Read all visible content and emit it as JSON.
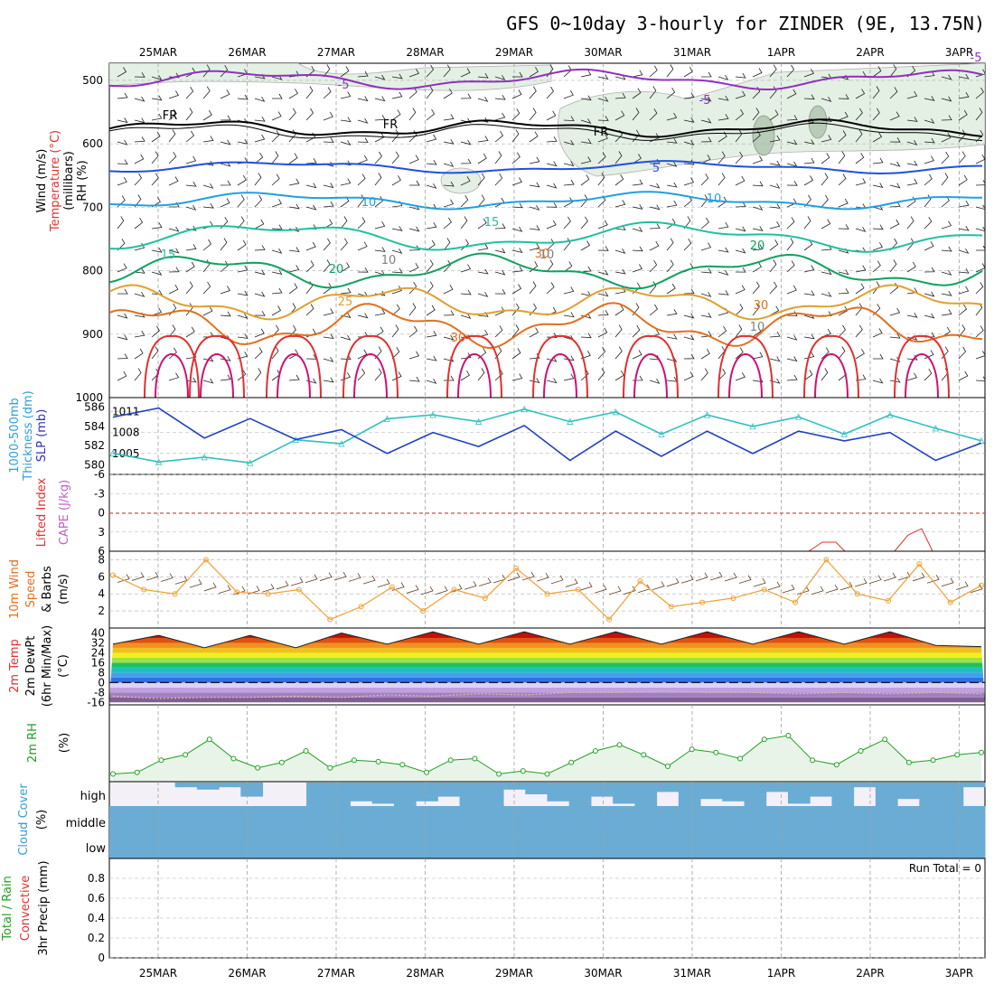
{
  "title": "GFS 0~10day 3-hourly for ZINDER (9E, 13.75N)",
  "dates": [
    "25MAR",
    "26MAR",
    "27MAR",
    "28MAR",
    "29MAR",
    "30MAR",
    "31MAR",
    "1APR",
    "2APR",
    "3APR"
  ],
  "panels": {
    "upper": {
      "ylabel_lines": [
        {
          "text": "Wind (m/s)",
          "color": "#000000"
        },
        {
          "text": "Temperature (°C)",
          "color": "#e03030"
        },
        {
          "text": "(millibars)",
          "color": "#000000"
        },
        {
          "text": "RH (%)",
          "color": "#000000"
        }
      ],
      "yticks": [
        "500",
        "600",
        "700",
        "800",
        "900",
        "1000"
      ],
      "contour_labels": [
        "-5",
        "-5",
        "-5",
        "FR",
        "FR",
        "FR",
        "5",
        "10",
        "10",
        "15",
        "15",
        "20",
        "20",
        "25",
        "30",
        "30",
        "30",
        "10",
        "10",
        "10"
      ]
    },
    "thickness": {
      "ylabel_lines": [
        {
          "text": "1000-500mb",
          "color": "#30a0d0"
        },
        {
          "text": "Thickness (dm)",
          "color": "#30a0d0"
        },
        {
          "text": "SLP (mb)",
          "color": "#3030c0"
        }
      ],
      "left_ticks": [
        "586",
        "584",
        "582",
        "580"
      ],
      "right_ticks": [
        "1011",
        "1008",
        "1005"
      ]
    },
    "lifted": {
      "ylabel_lines": [
        {
          "text": "Lifted Index",
          "color": "#e03030"
        },
        {
          "text": "CAPE (J/kg)",
          "color": "#c060c0"
        }
      ],
      "yticks": [
        "-6",
        "-3",
        "0",
        "3",
        "6"
      ]
    },
    "wind10": {
      "ylabel_lines": [
        {
          "text": "10m Wind",
          "color": "#e07020"
        },
        {
          "text": "Speed",
          "color": "#e07020"
        },
        {
          "text": "& Barbs",
          "color": "#000000"
        },
        {
          "text": "(m/s)",
          "color": "#000000"
        }
      ],
      "yticks": [
        "8",
        "6",
        "4",
        "2"
      ]
    },
    "temp2m": {
      "ylabel_lines": [
        {
          "text": "2m Temp",
          "color": "#e03030"
        },
        {
          "text": "2m DewPt",
          "color": "#000000"
        },
        {
          "text": "(6hr Min/Max)",
          "color": "#000000"
        },
        {
          "text": "(°C)",
          "color": "#000000"
        }
      ],
      "yticks": [
        "40",
        "32",
        "24",
        "16",
        "8",
        "0",
        "-8",
        "-16"
      ]
    },
    "rh2m": {
      "ylabel_lines": [
        {
          "text": "2m RH",
          "color": "#20a020"
        },
        {
          "text": "(%)",
          "color": "#000000"
        }
      ]
    },
    "cloud": {
      "ylabel_lines": [
        {
          "text": "Cloud Cover",
          "color": "#30a0d0"
        },
        {
          "text": "(%)",
          "color": "#000000"
        }
      ],
      "levels": [
        "high",
        "middle",
        "low"
      ]
    },
    "precip": {
      "ylabel_lines": [
        {
          "text": "Total / Rain",
          "color": "#20a020"
        },
        {
          "text": "Convective",
          "color": "#e03030"
        },
        {
          "text": "3hr Precip (mm)",
          "color": "#000000"
        }
      ],
      "yticks": [
        "0.8",
        "0.6",
        "0.4",
        "0.2",
        "0"
      ],
      "run_total": "Run Total = 0"
    }
  },
  "chart_data": [
    {
      "type": "line",
      "panel": "thickness",
      "x": [
        "25MAR 00",
        "25MAR 12",
        "26MAR 00",
        "26MAR 12",
        "27MAR 00",
        "27MAR 12",
        "28MAR 00",
        "28MAR 12",
        "29MAR 00",
        "29MAR 12",
        "30MAR 00",
        "30MAR 12",
        "31MAR 00",
        "31MAR 12",
        "1APR 00",
        "1APR 12",
        "2APR 00",
        "2APR 12",
        "3APR 00",
        "3APR 06"
      ],
      "series": [
        {
          "name": "1000-500mb Thickness (dm)",
          "color": "#30c0c0",
          "axis": "left",
          "values": [
            581.2,
            580.3,
            580.8,
            580.2,
            582.6,
            582.2,
            584.8,
            585.2,
            584.5,
            585.8,
            584.5,
            585.5,
            583.2,
            585.2,
            584.0,
            585.0,
            583.2,
            585.2,
            583.8,
            582.5
          ]
        },
        {
          "name": "SLP (mb)",
          "color": "#2040c0",
          "axis": "right",
          "values": [
            1010.2,
            1011.5,
            1007.2,
            1010.0,
            1007.0,
            1008.4,
            1005.0,
            1008.0,
            1006.0,
            1009.0,
            1004.0,
            1008.2,
            1004.6,
            1008.2,
            1005.0,
            1008.2,
            1006.8,
            1008.0,
            1004.0,
            1006.5
          ]
        }
      ],
      "ylim_left": [
        579,
        587
      ],
      "ylim_right": [
        1002,
        1013
      ]
    },
    {
      "type": "line",
      "panel": "wind10",
      "series": [
        {
          "name": "10m Wind Speed",
          "color": "#f0a030",
          "values": [
            6.2,
            4.5,
            4.0,
            8.0,
            4.2,
            4.0,
            4.5,
            1.0,
            2.5,
            4.8,
            2.0,
            4.5,
            3.5,
            7.0,
            4.0,
            4.5,
            1.0,
            5.5,
            2.5,
            3.0,
            3.5,
            4.5,
            3.0,
            8.0,
            4.0,
            3.2,
            7.5,
            3.0,
            5.0
          ]
        }
      ],
      "ylim": [
        0,
        9
      ]
    },
    {
      "type": "area",
      "panel": "temp2m",
      "series": [
        {
          "name": "2m Temp",
          "color": "#e03030",
          "values": [
            31,
            38,
            28,
            38,
            28,
            40,
            31,
            41,
            31,
            41,
            31,
            41,
            31,
            41,
            31,
            41,
            31,
            41,
            30,
            29
          ]
        },
        {
          "name": "2m DewPt",
          "color": "#808080",
          "values": [
            -11,
            -13,
            -12,
            -12,
            -11,
            -12,
            -10,
            -11,
            -9,
            -10,
            -8,
            -8,
            -7,
            -8,
            -8,
            -9,
            -8,
            -9,
            -8,
            -9
          ]
        }
      ],
      "ylim": [
        -18,
        44
      ]
    },
    {
      "type": "area",
      "panel": "rh2m",
      "series": [
        {
          "name": "2m RH",
          "color": "#20a020",
          "values": [
            10,
            12,
            28,
            35,
            55,
            30,
            18,
            25,
            40,
            18,
            28,
            26,
            22,
            12,
            28,
            30,
            10,
            14,
            10,
            25,
            40,
            48,
            35,
            20,
            42,
            38,
            30,
            55,
            60,
            28,
            22,
            40,
            55,
            25,
            28,
            35,
            38
          ]
        }
      ],
      "ylim": [
        0,
        100
      ]
    },
    {
      "type": "bar",
      "panel": "cloud",
      "series": [
        {
          "name": "high",
          "color": "#6aacd4",
          "values": [
            0,
            0,
            0,
            20,
            30,
            20,
            60,
            0,
            0,
            100,
            100,
            80,
            90,
            100,
            80,
            60,
            100,
            100,
            30,
            50,
            80,
            100,
            60,
            90,
            100,
            40,
            100,
            70,
            80,
            100,
            40,
            90,
            60,
            100,
            20,
            100,
            70,
            100,
            100,
            20
          ]
        },
        {
          "name": "middle",
          "color": "#6aacd4",
          "values": [
            100,
            100,
            100,
            100,
            100,
            100,
            100,
            100,
            100,
            100,
            100,
            100,
            100,
            100,
            100,
            100,
            100,
            100,
            100,
            100,
            100,
            100,
            100,
            100,
            100,
            100,
            100,
            100,
            100,
            100,
            100,
            100,
            100,
            100,
            100,
            100,
            100,
            100,
            100,
            100
          ]
        }
      ],
      "ylim": [
        0,
        100
      ]
    },
    {
      "type": "bar",
      "panel": "precip",
      "series": [
        {
          "name": "Total / Rain",
          "color": "#20a020",
          "values": [
            0,
            0,
            0,
            0,
            0,
            0,
            0,
            0,
            0,
            0
          ]
        },
        {
          "name": "Convective",
          "color": "#e03030",
          "values": [
            0,
            0,
            0,
            0,
            0,
            0,
            0,
            0,
            0,
            0
          ]
        }
      ],
      "ylim": [
        0,
        1
      ]
    }
  ]
}
